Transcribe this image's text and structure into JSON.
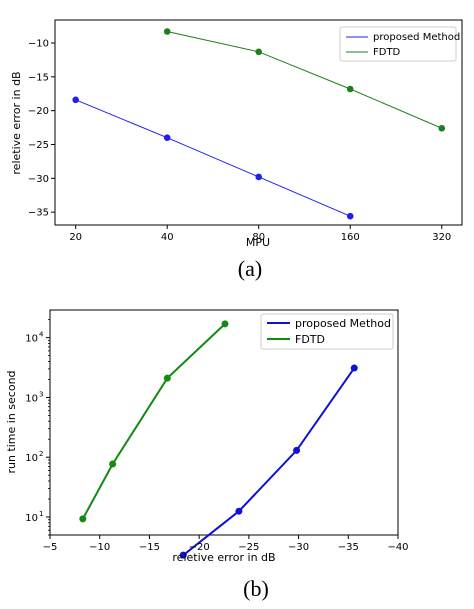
{
  "chart_data": [
    {
      "type": "line",
      "caption": "(a)",
      "xlabel": "MPU",
      "ylabel": "reletive error in dB",
      "x_scale": "log2",
      "xticks": [
        20,
        40,
        80,
        160,
        320
      ],
      "yticks": [
        -35,
        -30,
        -25,
        -20,
        -15,
        -10
      ],
      "xlim": [
        17.1,
        373
      ],
      "ylim": [
        -36.9,
        -6.6
      ],
      "legend_position": "top-right",
      "series": [
        {
          "name": "proposed Method",
          "color": "#1f1fef",
          "x": [
            20,
            40,
            80,
            160
          ],
          "y": [
            -18.4,
            -24.0,
            -29.8,
            -35.6
          ]
        },
        {
          "name": "FDTD",
          "color": "#1e7f1e",
          "x": [
            40,
            80,
            160,
            320
          ],
          "y": [
            -8.3,
            -11.3,
            -16.8,
            -22.6
          ]
        }
      ]
    },
    {
      "type": "line",
      "caption": "(b)",
      "xlabel": "reletive error in dB",
      "ylabel": "run time in second",
      "y_scale": "log",
      "xticks": [
        -5,
        -10,
        -15,
        -20,
        -25,
        -30,
        -35,
        -40
      ],
      "xtick_labels": [
        "−5",
        "−10",
        "−15",
        "−20",
        "−25",
        "−30",
        "−35",
        "−40"
      ],
      "yticks": [
        10,
        100,
        1000,
        10000
      ],
      "ytick_labels": [
        "10",
        "10",
        "10",
        "10"
      ],
      "ytick_exponents": [
        "1",
        "2",
        "3",
        "4"
      ],
      "xlim": [
        -5,
        -40
      ],
      "ylim": [
        5.0,
        29000
      ],
      "legend_position": "top-right",
      "series": [
        {
          "name": "proposed Method",
          "color": "#1010d8",
          "x": [
            -18.4,
            -24.0,
            -29.8,
            -35.6
          ],
          "y": [
            2.3,
            12.5,
            130,
            3100
          ]
        },
        {
          "name": "FDTD",
          "color": "#138a13",
          "x": [
            -8.3,
            -11.3,
            -16.8,
            -22.6
          ],
          "y": [
            9.3,
            77,
            2100,
            17000
          ]
        }
      ]
    }
  ]
}
